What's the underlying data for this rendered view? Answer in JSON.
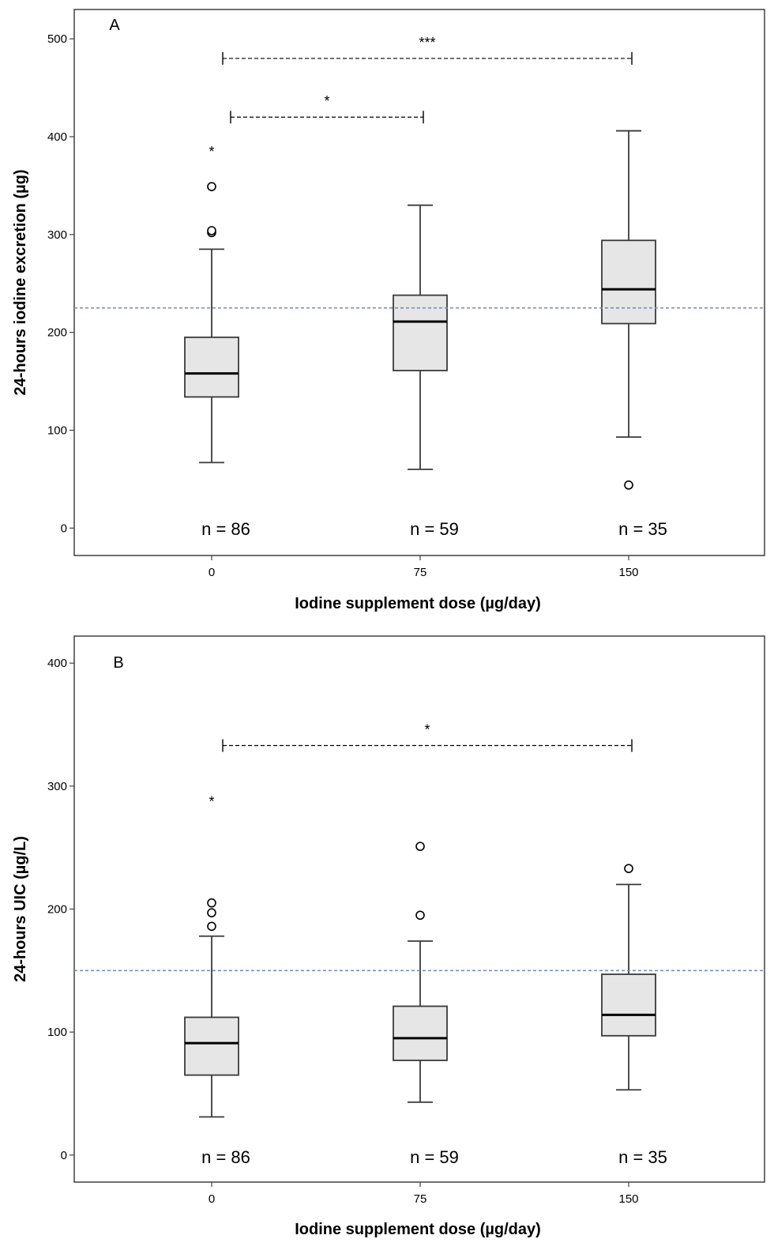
{
  "colors": {
    "box_fill": "#e6e6e6",
    "box_stroke": "#3a3a3a",
    "median": "#000000",
    "reference_line": "#7a8fb8",
    "frame": "#404040"
  },
  "chart_data": [
    {
      "type": "box",
      "panel_label": "A",
      "xlabel": "Iodine supplement dose (µg/day)",
      "ylabel": "24-hours iodine excretion (µg)",
      "ylim": [
        -28,
        530
      ],
      "yticks": [
        0,
        100,
        200,
        300,
        400,
        500
      ],
      "categories": [
        "0",
        "75",
        "150"
      ],
      "reference_line": 225,
      "grid": false,
      "boxes": [
        {
          "category": "0",
          "n_label": "n = 86",
          "whisker_low": 67,
          "q1": 134,
          "median": 158,
          "q3": 195,
          "whisker_high": 285,
          "outliers": [
            302,
            304,
            349
          ],
          "extremes": [
            388
          ]
        },
        {
          "category": "75",
          "n_label": "n = 59",
          "whisker_low": 60,
          "q1": 161,
          "median": 211,
          "q3": 238,
          "whisker_high": 330,
          "outliers": [],
          "extremes": []
        },
        {
          "category": "150",
          "n_label": "n = 35",
          "whisker_low": 93,
          "q1": 209,
          "median": 244,
          "q3": 294,
          "whisker_high": 406,
          "outliers": [
            44
          ],
          "extremes": []
        }
      ],
      "significance": [
        {
          "from": "0",
          "to": "75",
          "label": "*",
          "level": 420
        },
        {
          "from": "0",
          "to": "150",
          "label": "***",
          "level": 480
        }
      ]
    },
    {
      "type": "box",
      "panel_label": "B",
      "xlabel": "Iodine supplement dose (µg/day)",
      "ylabel": "24-hours UIC (µg/L)",
      "ylim": [
        -22,
        422
      ],
      "yticks": [
        0,
        100,
        200,
        300,
        400
      ],
      "categories": [
        "0",
        "75",
        "150"
      ],
      "reference_line": 150,
      "grid": false,
      "boxes": [
        {
          "category": "0",
          "n_label": "n = 86",
          "whisker_low": 31,
          "q1": 65,
          "median": 91,
          "q3": 112,
          "whisker_high": 178,
          "outliers": [
            186,
            197,
            205
          ],
          "extremes": [
            290
          ]
        },
        {
          "category": "75",
          "n_label": "n = 59",
          "whisker_low": 43,
          "q1": 77,
          "median": 95,
          "q3": 121,
          "whisker_high": 174,
          "outliers": [
            195,
            251
          ],
          "extremes": []
        },
        {
          "category": "150",
          "n_label": "n = 35",
          "whisker_low": 53,
          "q1": 97,
          "median": 114,
          "q3": 147,
          "whisker_high": 220,
          "outliers": [
            233
          ],
          "extremes": []
        }
      ],
      "significance": [
        {
          "from": "0",
          "to": "150",
          "label": "*",
          "level": 333
        }
      ]
    }
  ]
}
